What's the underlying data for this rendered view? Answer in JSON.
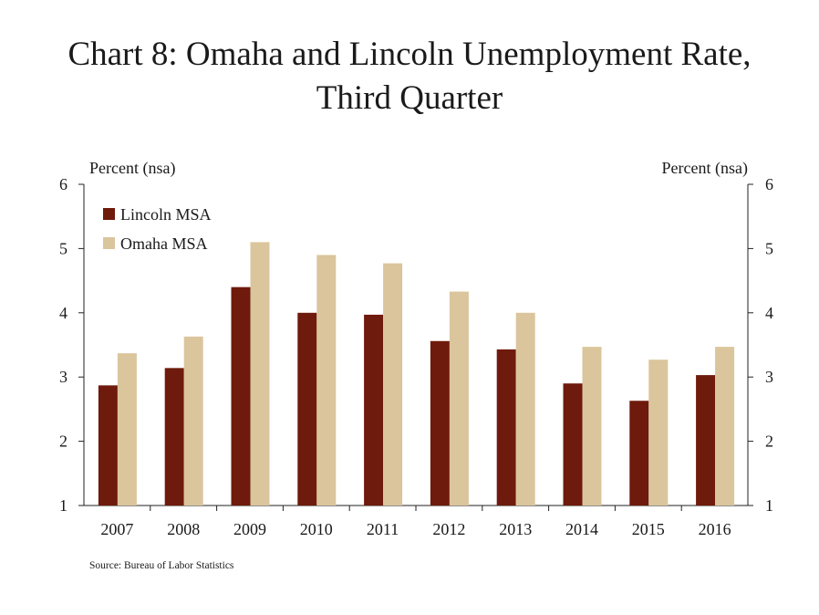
{
  "colors": {
    "lincoln": "#6e1a0c",
    "omaha": "#dbc59c",
    "axis": "#222222"
  },
  "chart_data": {
    "type": "bar",
    "title_line1": "Chart 8: Omaha and Lincoln Unemployment Rate,",
    "title_line2": "Third Quarter",
    "ylabel_left": "Percent (nsa)",
    "ylabel_right": "Percent (nsa)",
    "ylim": [
      1,
      6
    ],
    "yticks": [
      "1",
      "2",
      "3",
      "4",
      "5",
      "6"
    ],
    "categories": [
      "2007",
      "2008",
      "2009",
      "2010",
      "2011",
      "2012",
      "2013",
      "2014",
      "2015",
      "2016"
    ],
    "series": [
      {
        "name": "Lincoln MSA",
        "values": [
          2.87,
          3.14,
          4.4,
          4.0,
          3.97,
          3.56,
          3.43,
          2.9,
          2.63,
          3.03
        ]
      },
      {
        "name": "Omaha MSA",
        "values": [
          3.37,
          3.63,
          5.1,
          4.9,
          4.77,
          4.33,
          4.0,
          3.47,
          3.27,
          3.47
        ]
      }
    ],
    "legend": "top-left",
    "grid": false,
    "source": "Source: Bureau of Labor Statistics"
  }
}
